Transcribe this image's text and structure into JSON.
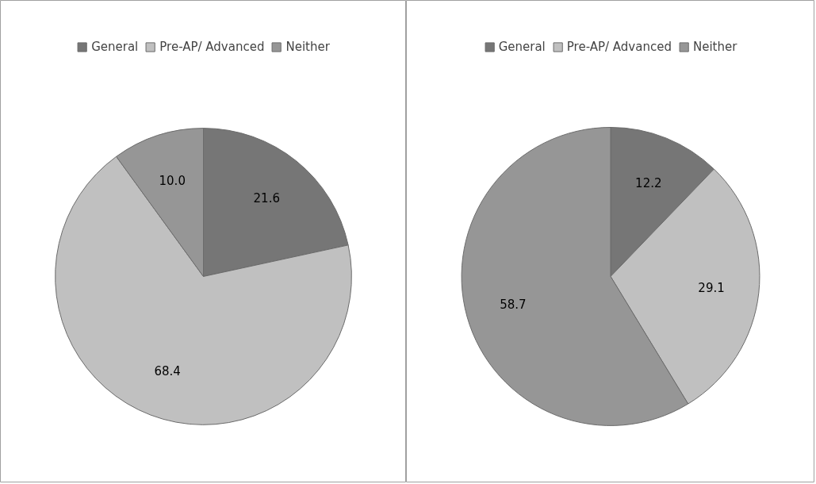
{
  "chart_data": [
    {
      "type": "pie",
      "categories": [
        "General",
        "Pre-AP/ Advanced",
        "Neither"
      ],
      "values": [
        21.6,
        68.4,
        10.0
      ],
      "value_labels": [
        "21.6",
        "68.4",
        "10.0"
      ],
      "colors": [
        "#767676",
        "#c0c0c0",
        "#969696"
      ],
      "legend": "top"
    },
    {
      "type": "pie",
      "categories": [
        "General",
        "Pre-AP/ Advanced",
        "Neither"
      ],
      "values": [
        12.2,
        29.1,
        58.7
      ],
      "value_labels": [
        "12.2",
        "29.1",
        "58.7"
      ],
      "colors": [
        "#767676",
        "#c0c0c0",
        "#969696"
      ],
      "legend": "top"
    }
  ]
}
